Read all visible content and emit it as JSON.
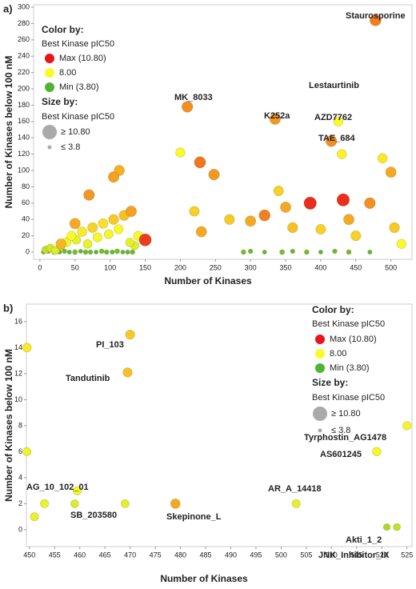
{
  "chart_data": [
    {
      "type": "scatter",
      "panel_label": "a)",
      "xlabel": "Number of Kinases",
      "ylabel": "Number of Kinases below 100 nM",
      "xlim": [
        -9,
        530
      ],
      "ylim": [
        -8.8,
        303
      ],
      "xticks": [
        0,
        50,
        100,
        150,
        200,
        250,
        300,
        350,
        400,
        450,
        500
      ],
      "yticks": [
        0,
        20,
        40,
        60,
        80,
        100,
        120,
        140,
        160,
        180,
        200,
        220,
        240,
        260,
        280,
        300
      ],
      "x": [
        5,
        12,
        20,
        28,
        35,
        42,
        50,
        58,
        65,
        72,
        80,
        88,
        95,
        103,
        110,
        118,
        125,
        132,
        290,
        300,
        320,
        345,
        360,
        380,
        400,
        420,
        440,
        470,
        8,
        15,
        22,
        30,
        38,
        45,
        52,
        60,
        68,
        75,
        82,
        90,
        98,
        105,
        112,
        120,
        128,
        135,
        140,
        70,
        105,
        113,
        50,
        130,
        30,
        150,
        200,
        228,
        248,
        210,
        220,
        230,
        270,
        300,
        320,
        335,
        340,
        350,
        360,
        385,
        400,
        415,
        425,
        430,
        432,
        440,
        450,
        470,
        478,
        488,
        500,
        505,
        515
      ],
      "y": [
        0,
        1,
        0,
        0,
        1,
        0,
        0,
        1,
        0,
        0,
        0,
        1,
        0,
        0,
        1,
        0,
        0,
        0,
        0,
        1,
        0,
        0,
        1,
        0,
        0,
        1,
        0,
        0,
        3,
        5,
        2,
        8,
        12,
        20,
        15,
        25,
        10,
        30,
        18,
        35,
        22,
        40,
        28,
        45,
        12,
        8,
        20,
        70,
        92,
        100,
        35,
        50,
        10,
        15,
        122,
        110,
        95,
        178,
        50,
        25,
        40,
        38,
        45,
        163,
        75,
        55,
        30,
        60,
        28,
        136,
        160,
        120,
        64,
        40,
        20,
        60,
        284,
        115,
        98,
        30,
        10
      ],
      "pic50": [
        4,
        4.2,
        4.5,
        4,
        4.3,
        4.1,
        4.6,
        4,
        4.4,
        4.2,
        4,
        4.5,
        4.3,
        4.1,
        4.6,
        4,
        4.2,
        4.4,
        4.5,
        4.3,
        4,
        4.6,
        4.2,
        4.4,
        4,
        4.3,
        4.5,
        4.1,
        6.5,
        7,
        7.2,
        7.5,
        7.8,
        8,
        7.5,
        8.2,
        7.6,
        8.5,
        7.9,
        8.3,
        7.8,
        8.6,
        8,
        8.7,
        7.5,
        7.3,
        8,
        9.2,
        9.1,
        8.9,
        9,
        9.1,
        8.8,
        10.3,
        8,
        9.6,
        9.2,
        9.3,
        8.5,
        9,
        8.6,
        9,
        9.5,
        9.2,
        8.5,
        9,
        8.7,
        10.5,
        8.5,
        9.3,
        8,
        8.1,
        10.5,
        9,
        8.5,
        9.3,
        9.5,
        8.2,
        9,
        8.6,
        8
      ],
      "annotations": [
        "Staurosporine",
        "MK_8033",
        "K252a",
        "Lestaurtinib",
        "AZD7762",
        "TAE_684"
      ],
      "legend": {
        "color_title": "Color by:",
        "color_subtitle": "Best Kinase pIC50",
        "color_scale": [
          {
            "value": 10.8,
            "label": "Max (10.80)"
          },
          {
            "value": 8.0,
            "label": "8.00"
          },
          {
            "value": 3.8,
            "label": "Min (3.80)"
          }
        ],
        "size_title": "Size by:",
        "size_subtitle": "Best Kinase pIC50",
        "size_scale": [
          {
            "value": 10.8,
            "label": "≥ 10.80"
          },
          {
            "value": 3.8,
            "label": "≤ 3.8"
          }
        ]
      }
    },
    {
      "type": "scatter",
      "panel_label": "b)",
      "xlabel": "Number of Kinases",
      "ylabel": "Number of Kinases below 100 nM",
      "xlim": [
        449.4,
        526
      ],
      "ylim": [
        -1.3,
        17.35
      ],
      "xticks": [
        450,
        455,
        460,
        465,
        470,
        475,
        480,
        485,
        490,
        495,
        500,
        505,
        510,
        515,
        520,
        525
      ],
      "yticks": [
        0,
        2,
        4,
        6,
        8,
        10,
        12,
        14,
        16
      ],
      "x": [
        449.5,
        470,
        469.5,
        449.5,
        459.5,
        451,
        453,
        459,
        469,
        479,
        503,
        525,
        519,
        521,
        523
      ],
      "y": [
        14,
        15,
        12.1,
        6,
        3,
        1,
        2,
        2,
        2,
        2,
        2,
        8,
        6,
        0.2,
        0.2
      ],
      "pic50": [
        8.2,
        8.6,
        8.7,
        7.7,
        7.8,
        7.5,
        7.6,
        7.2,
        7.4,
        9.0,
        7.5,
        7.8,
        7.9,
        6.0,
        6.5
      ],
      "annotations": [
        "PI_103",
        "Tandutinib",
        "Tyrphostin_AG1478",
        "AS601245",
        "AG_10_102_01",
        "SB_203580",
        "Skepinone_L",
        "AR_A_14418",
        "JNK_Inhibitor_IX",
        "Akti_1_2"
      ],
      "legend": {
        "color_title": "Color by:",
        "color_subtitle": "Best Kinase pIC50",
        "color_scale": [
          {
            "value": 10.8,
            "label": "Max (10.80)"
          },
          {
            "value": 8.0,
            "label": "8.00"
          },
          {
            "value": 3.8,
            "label": "Min (3.80)"
          }
        ],
        "size_title": "Size by:",
        "size_subtitle": "Best Kinase pIC50",
        "size_scale": [
          {
            "value": 10.8,
            "label": "≥ 10.80"
          },
          {
            "value": 3.8,
            "label": "≤ 3.8"
          }
        ]
      }
    }
  ]
}
